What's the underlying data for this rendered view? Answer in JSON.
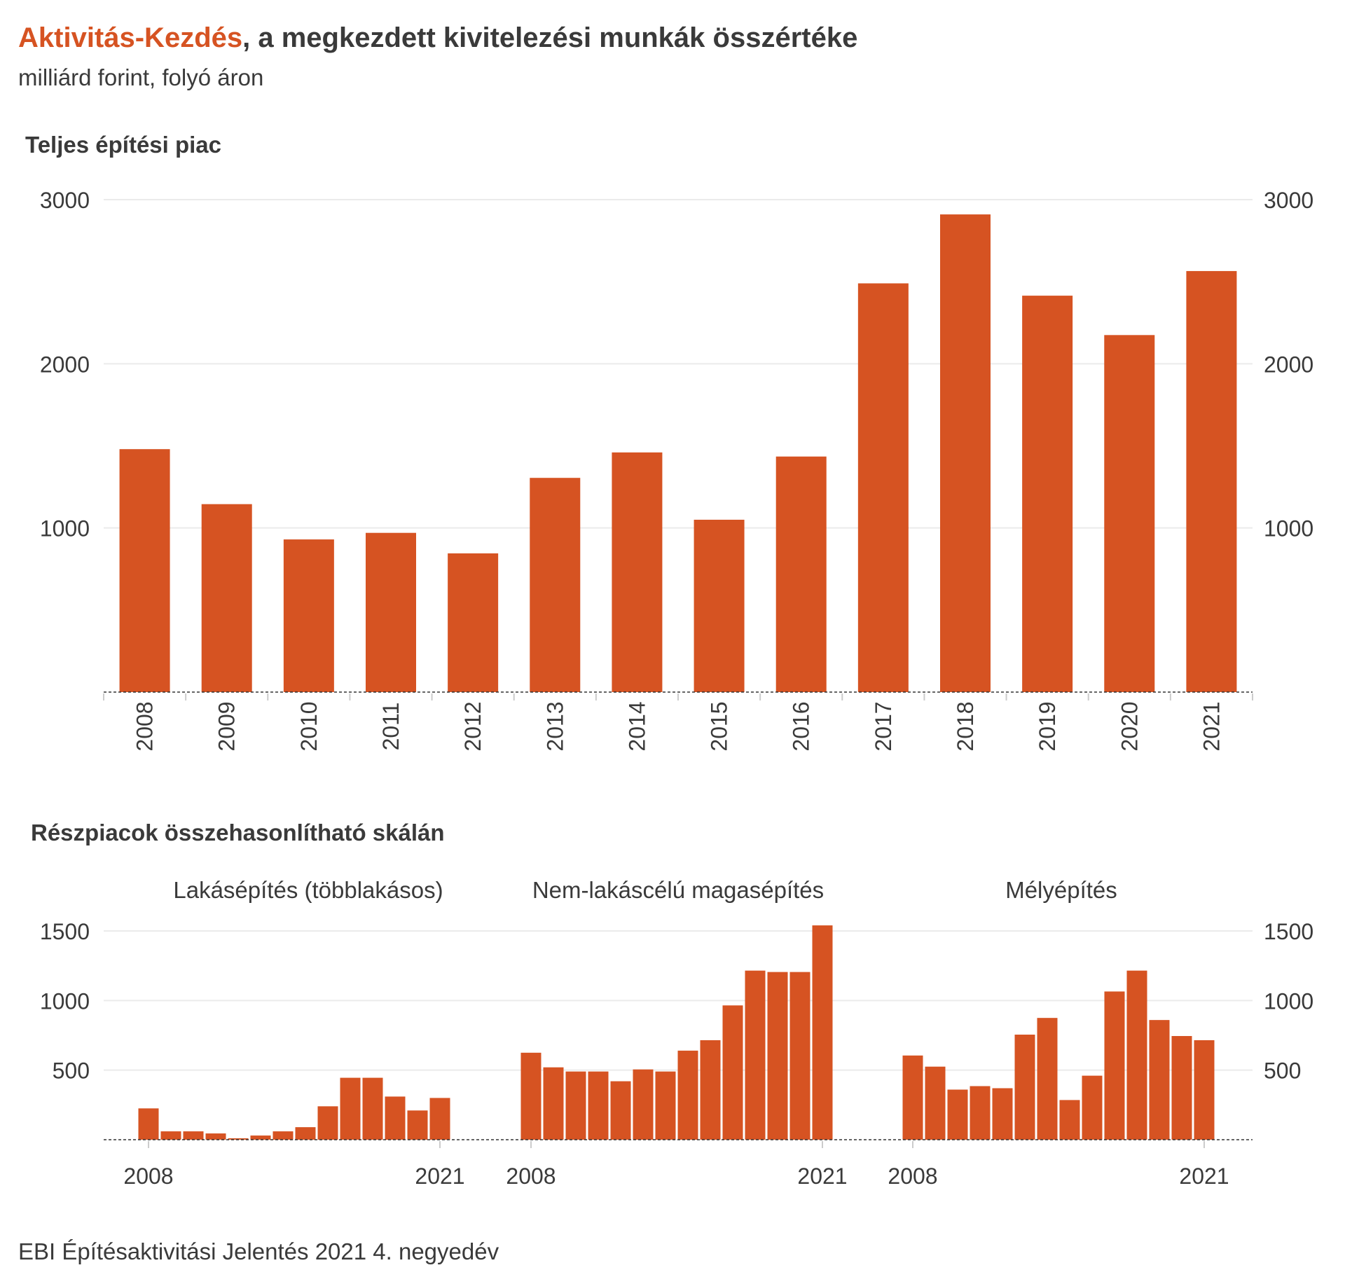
{
  "title_accent": "Aktivitás-Kezdés",
  "title_rest": ", a megkezdett kivitelezési munkák összértéke",
  "subtitle": "milliárd forint, folyó áron",
  "footer": "EBI Építésaktivitási Jelentés 2021 4. negyedév",
  "colors": {
    "bar": "#d65322",
    "grid": "#ebebeb",
    "text": "#3a3a3a",
    "accent": "#d65322"
  },
  "chart_data": [
    {
      "type": "bar",
      "title": "Teljes építési piac",
      "categories": [
        "2008",
        "2009",
        "2010",
        "2011",
        "2012",
        "2013",
        "2014",
        "2015",
        "2016",
        "2017",
        "2018",
        "2019",
        "2020",
        "2021"
      ],
      "values": [
        1480,
        1145,
        930,
        970,
        845,
        1305,
        1460,
        1050,
        1435,
        2490,
        2910,
        2415,
        2175,
        2565
      ],
      "yticks": [
        1000,
        2000,
        3000
      ],
      "ylim": [
        0,
        3000
      ],
      "axes": "left and right",
      "grid": true
    },
    {
      "type": "bar",
      "title": "Részpiacok összehasonlítható skálán",
      "layout": "small multiples, shared y axis",
      "yticks": [
        500,
        1000,
        1500
      ],
      "ylim": [
        0,
        1500
      ],
      "grid": true,
      "panels": [
        {
          "name": "Lakásépítés (többlakásos)",
          "x_labels": [
            "2008",
            "2021"
          ],
          "x": [
            2008,
            2009,
            2010,
            2011,
            2012,
            2013,
            2014,
            2015,
            2016,
            2017,
            2018,
            2019,
            2020,
            2021
          ],
          "values": [
            225,
            60,
            60,
            45,
            10,
            30,
            60,
            90,
            240,
            445,
            445,
            310,
            210,
            300
          ]
        },
        {
          "name": "Nem-lakáscélú magasépítés",
          "x_labels": [
            "2008",
            "2021"
          ],
          "x": [
            2008,
            2009,
            2010,
            2011,
            2012,
            2013,
            2014,
            2015,
            2016,
            2017,
            2018,
            2019,
            2020,
            2021
          ],
          "values": [
            625,
            520,
            490,
            490,
            420,
            505,
            490,
            640,
            715,
            965,
            1215,
            1205,
            1205,
            1540
          ]
        },
        {
          "name": "Mélyépítés",
          "x_labels": [
            "2008",
            "2021"
          ],
          "x": [
            2008,
            2009,
            2010,
            2011,
            2012,
            2013,
            2014,
            2015,
            2016,
            2017,
            2018,
            2019,
            2020,
            2021
          ],
          "values": [
            605,
            525,
            360,
            385,
            370,
            755,
            875,
            285,
            460,
            1065,
            1215,
            860,
            745,
            715
          ]
        }
      ]
    }
  ]
}
